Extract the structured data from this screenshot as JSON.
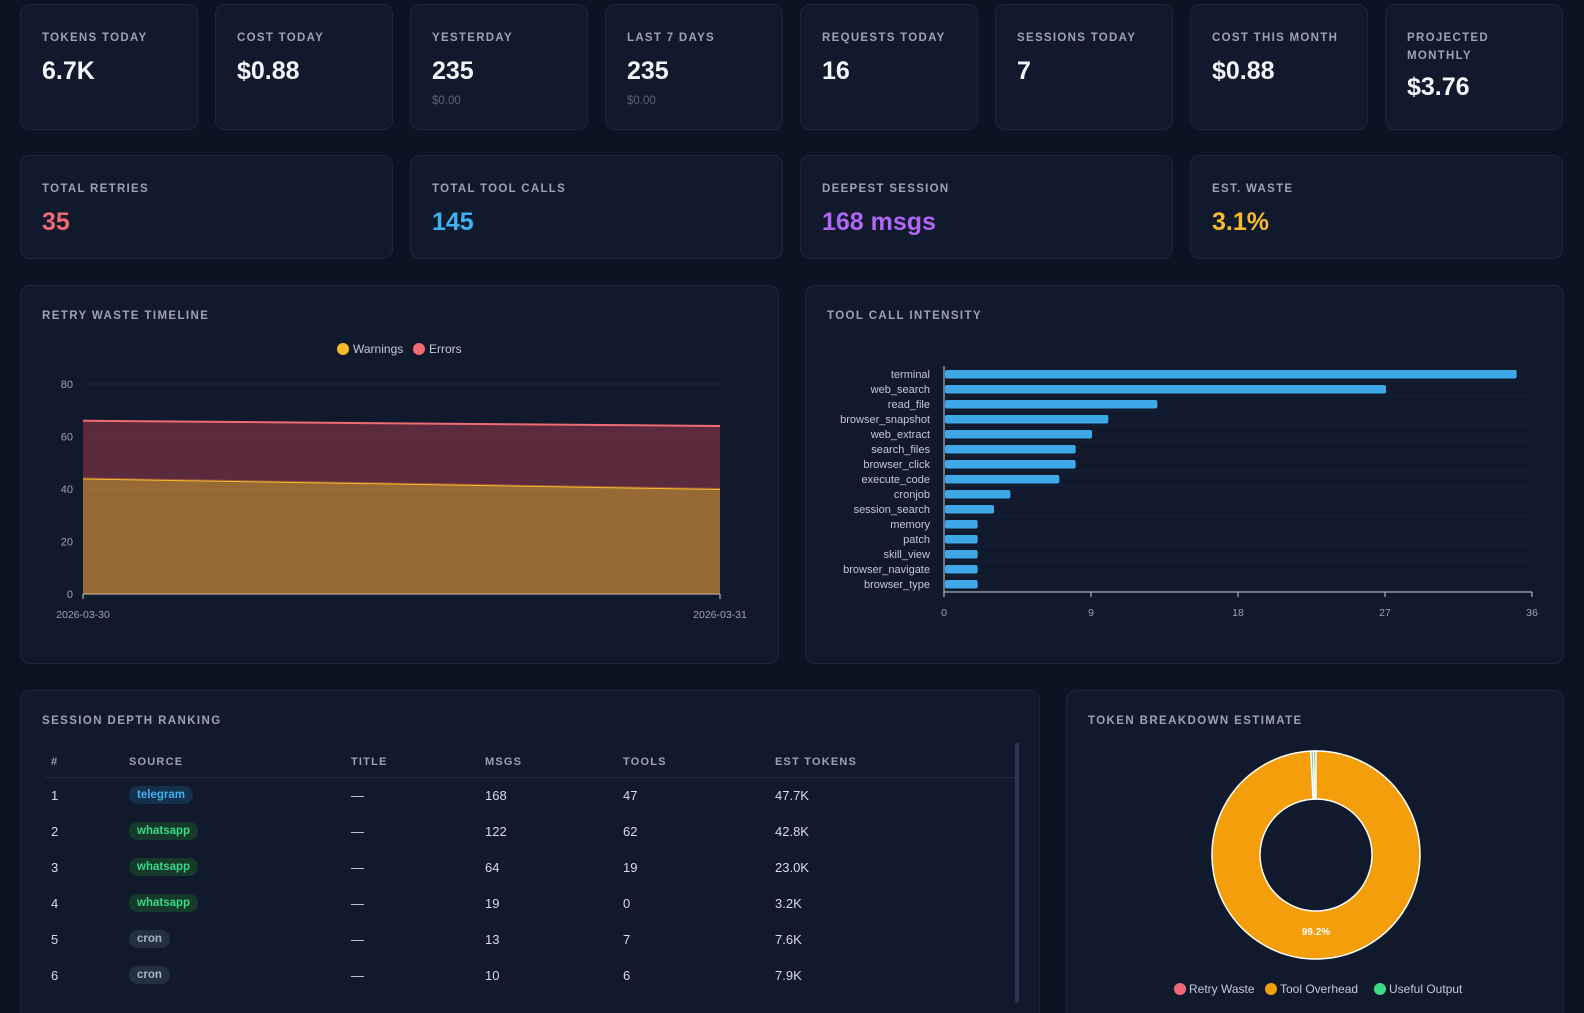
{
  "kpis_row1": [
    {
      "label": "TOKENS TODAY",
      "value": "6.7K",
      "sub": ""
    },
    {
      "label": "COST TODAY",
      "value": "$0.88",
      "sub": ""
    },
    {
      "label": "YESTERDAY",
      "value": "235",
      "sub": "$0.00"
    },
    {
      "label": "LAST 7 DAYS",
      "value": "235",
      "sub": "$0.00"
    },
    {
      "label": "REQUESTS TODAY",
      "value": "16",
      "sub": ""
    },
    {
      "label": "SESSIONS TODAY",
      "value": "7",
      "sub": ""
    },
    {
      "label": "COST THIS MONTH",
      "value": "$0.88",
      "sub": ""
    },
    {
      "label": "PROJECTED MONTHLY",
      "value": "$3.76",
      "sub": ""
    }
  ],
  "kpis_row2": [
    {
      "label": "TOTAL RETRIES",
      "value": "35",
      "color": "#ef6b73"
    },
    {
      "label": "TOTAL TOOL CALLS",
      "value": "145",
      "color": "#3fb0f0"
    },
    {
      "label": "DEEPEST SESSION",
      "value": "168 msgs",
      "color": "#b266f5"
    },
    {
      "label": "EST. WASTE",
      "value": "3.1%",
      "color": "#f5bb2b"
    }
  ],
  "retry_panel": {
    "title": "RETRY WASTE TIMELINE"
  },
  "tool_panel": {
    "title": "TOOL CALL INTENSITY"
  },
  "sessions_panel": {
    "title": "SESSION DEPTH RANKING",
    "columns": [
      "#",
      "SOURCE",
      "TITLE",
      "MSGS",
      "TOOLS",
      "EST TOKENS"
    ],
    "rows": [
      {
        "rank": "1",
        "source": "telegram",
        "title": "—",
        "msgs": "168",
        "tools": "47",
        "tokens": "47.7K"
      },
      {
        "rank": "2",
        "source": "whatsapp",
        "title": "—",
        "msgs": "122",
        "tools": "62",
        "tokens": "42.8K"
      },
      {
        "rank": "3",
        "source": "whatsapp",
        "title": "—",
        "msgs": "64",
        "tools": "19",
        "tokens": "23.0K"
      },
      {
        "rank": "4",
        "source": "whatsapp",
        "title": "—",
        "msgs": "19",
        "tools": "0",
        "tokens": "3.2K"
      },
      {
        "rank": "5",
        "source": "cron",
        "title": "—",
        "msgs": "13",
        "tools": "7",
        "tokens": "7.6K"
      },
      {
        "rank": "6",
        "source": "cron",
        "title": "—",
        "msgs": "10",
        "tools": "6",
        "tokens": "7.9K"
      }
    ]
  },
  "token_panel": {
    "title": "TOKEN BREAKDOWN ESTIMATE"
  },
  "chart_data": [
    {
      "type": "area",
      "title": "RETRY WASTE TIMELINE",
      "x": [
        "2026-03-30",
        "2026-03-31"
      ],
      "series": [
        {
          "name": "Warnings",
          "values": [
            44,
            40
          ],
          "color": "#f5bb2b"
        },
        {
          "name": "Errors",
          "values": [
            22,
            24
          ],
          "color": "#ef6b73"
        }
      ],
      "stacked": true,
      "ylim": [
        0,
        80
      ],
      "yticks": [
        0,
        20,
        40,
        60,
        80
      ],
      "legend": "top-center",
      "grid": true
    },
    {
      "type": "bar",
      "orientation": "horizontal",
      "title": "TOOL CALL INTENSITY",
      "categories": [
        "terminal",
        "web_search",
        "read_file",
        "browser_snapshot",
        "web_extract",
        "search_files",
        "browser_click",
        "execute_code",
        "cronjob",
        "session_search",
        "memory",
        "patch",
        "skill_view",
        "browser_navigate",
        "browser_type"
      ],
      "values": [
        35,
        27,
        13,
        10,
        9,
        8,
        8,
        7,
        4,
        3,
        2,
        2,
        2,
        2,
        2
      ],
      "color": "#3fa8e8",
      "xlim": [
        0,
        36
      ],
      "xticks": [
        0,
        9,
        18,
        27,
        36
      ],
      "grid": true
    },
    {
      "type": "pie",
      "donut": true,
      "title": "TOKEN BREAKDOWN ESTIMATE",
      "labels": [
        "Retry Waste",
        "Tool Overhead",
        "Useful Output"
      ],
      "values": [
        0.4,
        99.2,
        0.4
      ],
      "colors": [
        "#ef6b73",
        "#f59e0b",
        "#3ddc84"
      ],
      "data_label": "99.2%",
      "legend": "bottom"
    }
  ]
}
